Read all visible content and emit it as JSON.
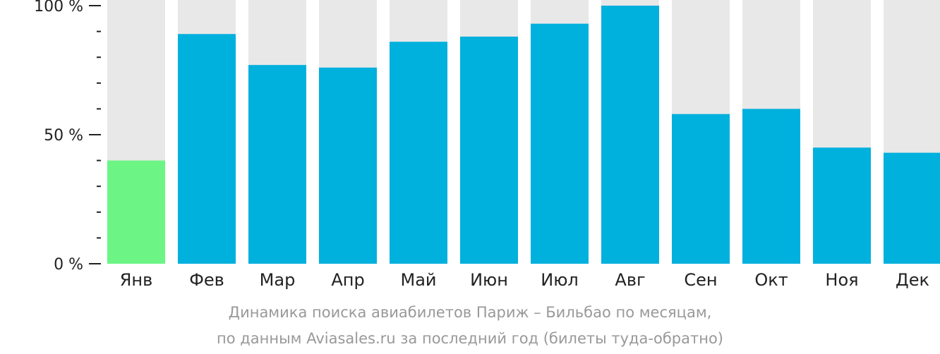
{
  "chart_data": {
    "type": "bar",
    "categories": [
      "Янв",
      "Фев",
      "Мар",
      "Апр",
      "Май",
      "Июн",
      "Июл",
      "Авг",
      "Сен",
      "Окт",
      "Ноя",
      "Дек"
    ],
    "values": [
      40,
      89,
      77,
      76,
      86,
      88,
      93,
      100,
      58,
      60,
      45,
      43
    ],
    "ylim": [
      0,
      100
    ],
    "y_ticks": [
      {
        "value": 100,
        "label": "100 %"
      },
      {
        "value": 50,
        "label": "50 %"
      },
      {
        "value": 0,
        "label": "0 %"
      }
    ],
    "highlight_index": 0,
    "colors": {
      "bar": "#00b0dd",
      "highlight": "#6cf585",
      "background_bar": "#e8e8e8",
      "axis": "#222222"
    },
    "caption": {
      "line1": "Динамика поиска авиабилетов Париж – Бильбао по месяцам,",
      "line2": "по данным Aviasales.ru за последний год (билеты туда-обратно)"
    },
    "xlabel": "",
    "ylabel": ""
  }
}
